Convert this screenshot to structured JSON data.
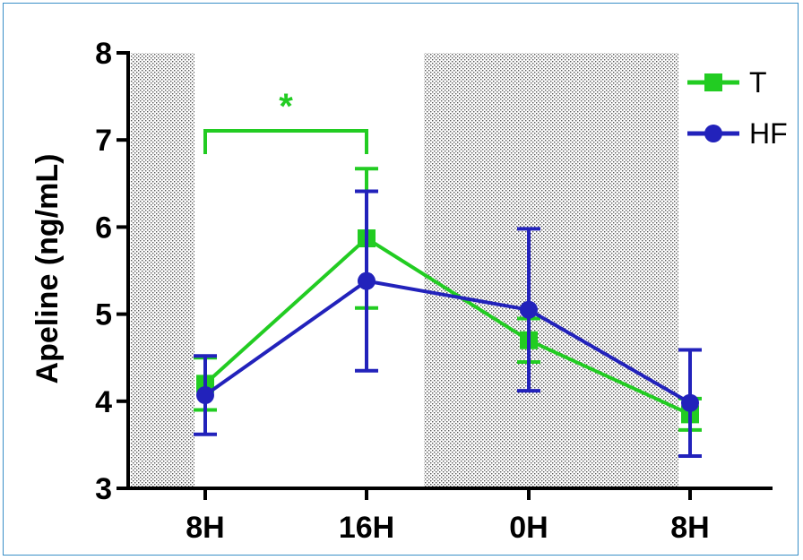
{
  "chart_data": {
    "type": "line",
    "title": "",
    "xlabel": "",
    "ylabel": "Apeline  (ng/mL)",
    "ylim": [
      3,
      8
    ],
    "yticks": [
      "3",
      "4",
      "5",
      "6",
      "7",
      "8"
    ],
    "categories": [
      "8H",
      "16H",
      "0H",
      "8H"
    ],
    "grid": false,
    "legend_position": "top-right",
    "shaded_periods": [
      {
        "from_category": 0,
        "to_category": 0,
        "note": "dark phase before first 8H"
      },
      {
        "from_category": 1,
        "to_category": 3,
        "note": "dark phase between 16H and last 8H"
      }
    ],
    "series": [
      {
        "name": "T",
        "color": "#22cc22",
        "marker": "square",
        "values": [
          4.2,
          5.87,
          4.7,
          3.85
        ],
        "error": [
          0.3,
          0.8,
          0.25,
          0.18
        ]
      },
      {
        "name": "HF",
        "color": "#2222bb",
        "marker": "circle",
        "values": [
          4.07,
          5.38,
          5.05,
          3.98
        ],
        "error": [
          0.45,
          1.03,
          0.93,
          0.61
        ]
      }
    ],
    "annotations": [
      {
        "text": "*",
        "color": "#22cc22",
        "between": [
          "8H",
          "16H"
        ],
        "bracket_level": 7.3
      }
    ]
  }
}
